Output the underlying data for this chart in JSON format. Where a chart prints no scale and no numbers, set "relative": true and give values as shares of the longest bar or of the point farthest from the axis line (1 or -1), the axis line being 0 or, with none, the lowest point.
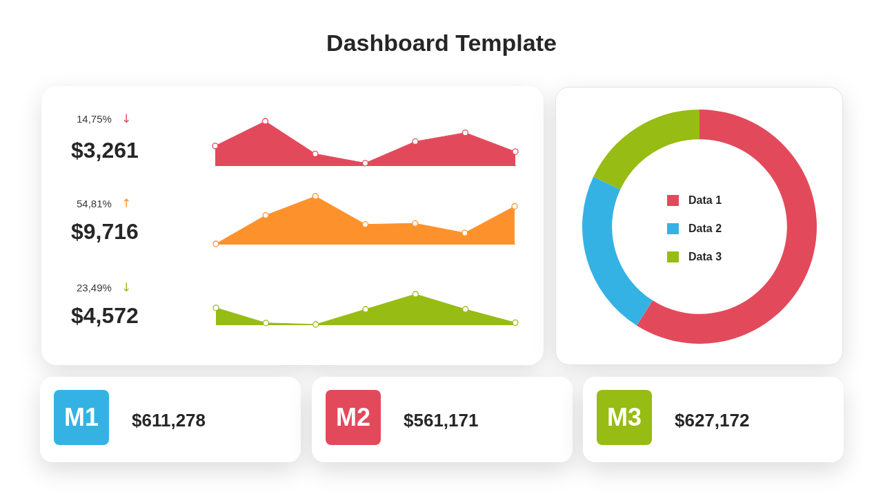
{
  "chart_data": [
    {
      "type": "other",
      "title": "Dashboard Template"
    },
    {
      "type": "area",
      "relative": true,
      "categories": [
        null,
        null,
        null,
        null,
        null,
        null,
        null
      ],
      "series": [
        {
          "color": "#e24a5b",
          "values": [
            0.44,
            1,
            0.26,
            0.05,
            0.54,
            0.74,
            0.31
          ]
        }
      ],
      "marker": "circle",
      "annotations": [
        "14,75%",
        "↓",
        "$3,261"
      ]
    },
    {
      "type": "area",
      "relative": true,
      "categories": [
        null,
        null,
        null,
        null,
        null,
        null,
        null
      ],
      "series": [
        {
          "color": "#fd922c",
          "values": [
            0,
            0.6,
            1,
            0.41,
            0.43,
            0.23,
            0.79
          ]
        }
      ],
      "marker": "circle",
      "annotations": [
        "54,81%",
        "↑",
        "$9,716"
      ]
    },
    {
      "type": "area",
      "relative": true,
      "categories": [
        null,
        null,
        null,
        null,
        null,
        null,
        null
      ],
      "series": [
        {
          "color": "#97bc13",
          "values": [
            0.55,
            0.05,
            0,
            0.5,
            1,
            0.5,
            0.06
          ]
        }
      ],
      "marker": "circle",
      "annotations": [
        "23,49%",
        "↓",
        "$4,572"
      ]
    },
    {
      "type": "donut",
      "categories": [
        "Data 1",
        "Data 2",
        "Data 3"
      ],
      "values": [
        59,
        23,
        18
      ],
      "colors": [
        "#e24a5b",
        "#35b2e4",
        "#97bc13"
      ],
      "legend": "center"
    },
    {
      "type": "other",
      "annotations": [
        "M1",
        "$611,278"
      ],
      "colors": [
        "#35b2e4"
      ]
    },
    {
      "type": "other",
      "annotations": [
        "M2",
        "$561,171"
      ],
      "colors": [
        "#e24a5b"
      ]
    },
    {
      "type": "other",
      "annotations": [
        "M3",
        "$627,172"
      ],
      "colors": [
        "#97bc13"
      ]
    }
  ]
}
